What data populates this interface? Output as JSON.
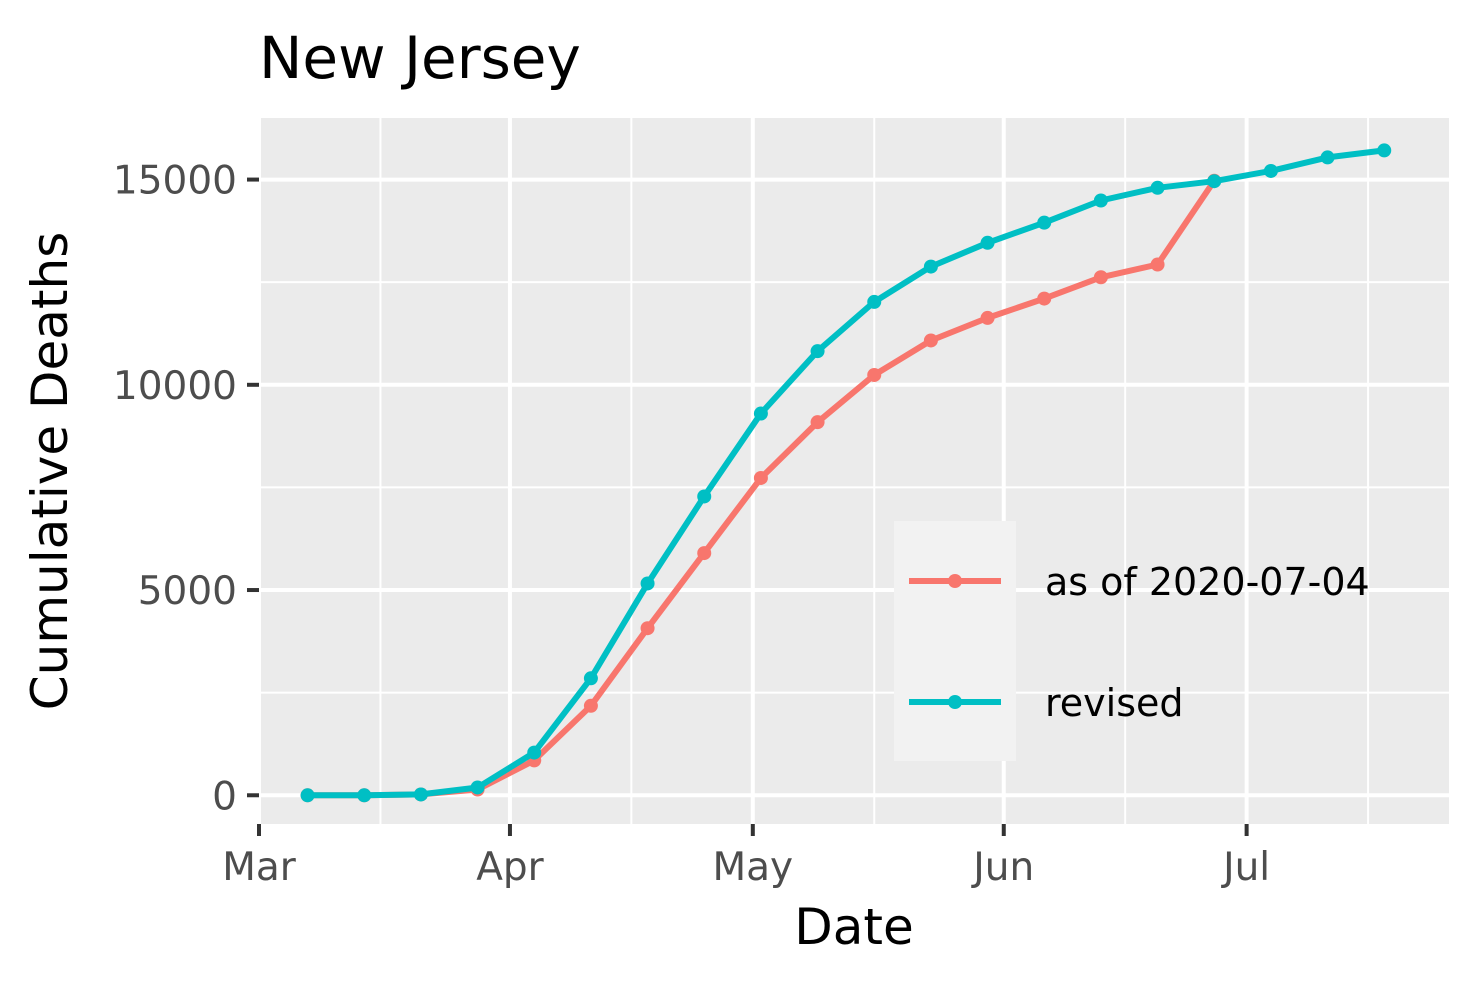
{
  "chart_data": {
    "type": "line",
    "title": "New Jersey",
    "xlabel": "Date",
    "ylabel": "Cumulative Deaths",
    "x_axis": {
      "type": "date",
      "range": [
        "2020-03-01",
        "2020-07-26"
      ],
      "ticks": [
        {
          "date": "2020-03-01",
          "label": "Mar"
        },
        {
          "date": "2020-04-01",
          "label": "Apr"
        },
        {
          "date": "2020-05-01",
          "label": "May"
        },
        {
          "date": "2020-06-01",
          "label": "Jun"
        },
        {
          "date": "2020-07-01",
          "label": "Jul"
        }
      ],
      "minor_ticks": [
        "2020-03-16",
        "2020-04-16",
        "2020-05-16",
        "2020-06-16",
        "2020-07-16"
      ]
    },
    "y_axis": {
      "range": [
        -700,
        16500
      ],
      "ticks": [
        0,
        5000,
        10000,
        15000
      ],
      "tick_labels": [
        "0",
        "5000",
        "10000",
        "15000"
      ],
      "minor_ticks": [
        2500,
        7500,
        12500
      ]
    },
    "grid": true,
    "legend_position": "bottom-right inside",
    "series": [
      {
        "name": "as of 2020-07-04",
        "color": "#F8766D",
        "points": [
          {
            "x": "2020-03-07",
            "y": 0
          },
          {
            "x": "2020-03-14",
            "y": 0
          },
          {
            "x": "2020-03-21",
            "y": 20
          },
          {
            "x": "2020-03-28",
            "y": 140
          },
          {
            "x": "2020-04-04",
            "y": 850
          },
          {
            "x": "2020-04-11",
            "y": 2180
          },
          {
            "x": "2020-04-18",
            "y": 4070
          },
          {
            "x": "2020-04-25",
            "y": 5900
          },
          {
            "x": "2020-05-02",
            "y": 7730
          },
          {
            "x": "2020-05-09",
            "y": 9090
          },
          {
            "x": "2020-05-16",
            "y": 10240
          },
          {
            "x": "2020-05-23",
            "y": 11080
          },
          {
            "x": "2020-05-30",
            "y": 11630
          },
          {
            "x": "2020-06-06",
            "y": 12100
          },
          {
            "x": "2020-06-13",
            "y": 12620
          },
          {
            "x": "2020-06-20",
            "y": 12930
          },
          {
            "x": "2020-06-27",
            "y": 14970
          }
        ]
      },
      {
        "name": "revised",
        "color": "#00BFC4",
        "points": [
          {
            "x": "2020-03-07",
            "y": 0
          },
          {
            "x": "2020-03-14",
            "y": 0
          },
          {
            "x": "2020-03-21",
            "y": 20
          },
          {
            "x": "2020-03-28",
            "y": 190
          },
          {
            "x": "2020-04-04",
            "y": 1040
          },
          {
            "x": "2020-04-11",
            "y": 2850
          },
          {
            "x": "2020-04-18",
            "y": 5160
          },
          {
            "x": "2020-04-25",
            "y": 7280
          },
          {
            "x": "2020-05-02",
            "y": 9300
          },
          {
            "x": "2020-05-09",
            "y": 10820
          },
          {
            "x": "2020-05-16",
            "y": 12020
          },
          {
            "x": "2020-05-23",
            "y": 12880
          },
          {
            "x": "2020-05-30",
            "y": 13460
          },
          {
            "x": "2020-06-06",
            "y": 13950
          },
          {
            "x": "2020-06-13",
            "y": 14490
          },
          {
            "x": "2020-06-20",
            "y": 14800
          },
          {
            "x": "2020-06-27",
            "y": 14960
          },
          {
            "x": "2020-07-04",
            "y": 15210
          },
          {
            "x": "2020-07-11",
            "y": 15540
          },
          {
            "x": "2020-07-18",
            "y": 15710
          }
        ]
      }
    ]
  }
}
